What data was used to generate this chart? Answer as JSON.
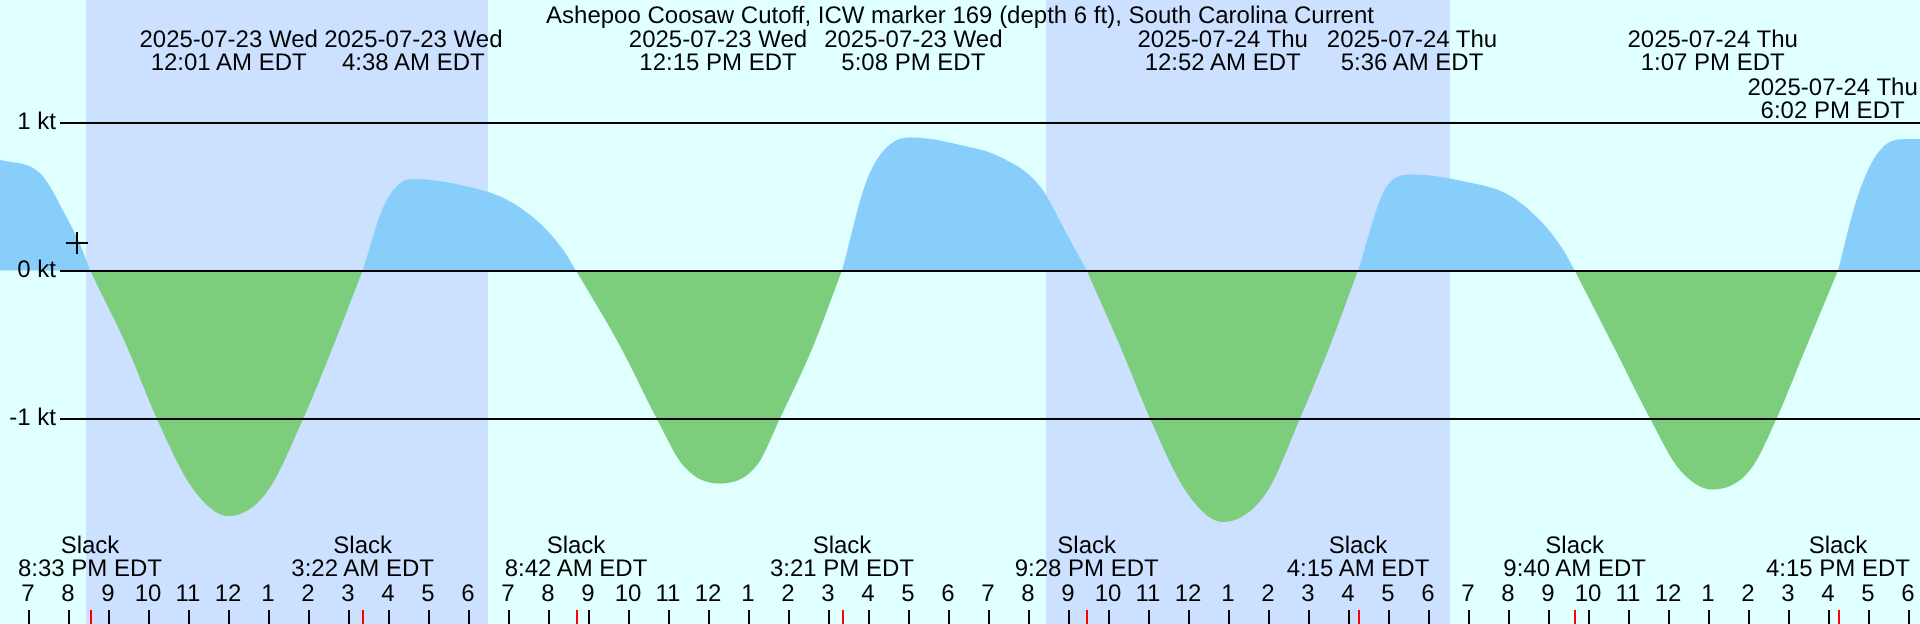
{
  "chart_data": {
    "type": "area",
    "title": "Ashepoo Coosaw Cutoff, ICW marker 169 (depth 6 ft), South Carolina Current",
    "xlim": [
      "2025-07-22T18:18",
      "2025-07-24T18:18"
    ],
    "xticks": [
      {
        "value": "2025-07-22T19:00",
        "label": "7"
      },
      {
        "value": "2025-07-22T20:00",
        "label": "8"
      },
      {
        "value": "2025-07-22T21:00",
        "label": "9"
      },
      {
        "value": "2025-07-22T22:00",
        "label": "10"
      },
      {
        "value": "2025-07-22T23:00",
        "label": "11"
      },
      {
        "value": "2025-07-23T00:00",
        "label": "12"
      },
      {
        "value": "2025-07-23T01:00",
        "label": "1"
      },
      {
        "value": "2025-07-23T02:00",
        "label": "2"
      },
      {
        "value": "2025-07-23T03:00",
        "label": "3"
      },
      {
        "value": "2025-07-23T04:00",
        "label": "4"
      },
      {
        "value": "2025-07-23T05:00",
        "label": "5"
      },
      {
        "value": "2025-07-23T06:00",
        "label": "6"
      },
      {
        "value": "2025-07-23T07:00",
        "label": "7"
      },
      {
        "value": "2025-07-23T08:00",
        "label": "8"
      },
      {
        "value": "2025-07-23T09:00",
        "label": "9"
      },
      {
        "value": "2025-07-23T10:00",
        "label": "10"
      },
      {
        "value": "2025-07-23T11:00",
        "label": "11"
      },
      {
        "value": "2025-07-23T12:00",
        "label": "12"
      },
      {
        "value": "2025-07-23T13:00",
        "label": "1"
      },
      {
        "value": "2025-07-23T14:00",
        "label": "2"
      },
      {
        "value": "2025-07-23T15:00",
        "label": "3"
      },
      {
        "value": "2025-07-23T16:00",
        "label": "4"
      },
      {
        "value": "2025-07-23T17:00",
        "label": "5"
      },
      {
        "value": "2025-07-23T18:00",
        "label": "6"
      },
      {
        "value": "2025-07-23T19:00",
        "label": "7"
      },
      {
        "value": "2025-07-23T20:00",
        "label": "8"
      },
      {
        "value": "2025-07-23T21:00",
        "label": "9"
      },
      {
        "value": "2025-07-23T22:00",
        "label": "10"
      },
      {
        "value": "2025-07-23T23:00",
        "label": "11"
      },
      {
        "value": "2025-07-24T00:00",
        "label": "12"
      },
      {
        "value": "2025-07-24T01:00",
        "label": "1"
      },
      {
        "value": "2025-07-24T02:00",
        "label": "2"
      },
      {
        "value": "2025-07-24T03:00",
        "label": "3"
      },
      {
        "value": "2025-07-24T04:00",
        "label": "4"
      },
      {
        "value": "2025-07-24T05:00",
        "label": "5"
      },
      {
        "value": "2025-07-24T06:00",
        "label": "6"
      },
      {
        "value": "2025-07-24T07:00",
        "label": "7"
      },
      {
        "value": "2025-07-24T08:00",
        "label": "8"
      },
      {
        "value": "2025-07-24T09:00",
        "label": "9"
      },
      {
        "value": "2025-07-24T10:00",
        "label": "10"
      },
      {
        "value": "2025-07-24T11:00",
        "label": "11"
      },
      {
        "value": "2025-07-24T12:00",
        "label": "12"
      },
      {
        "value": "2025-07-24T13:00",
        "label": "1"
      },
      {
        "value": "2025-07-24T14:00",
        "label": "2"
      },
      {
        "value": "2025-07-24T15:00",
        "label": "3"
      },
      {
        "value": "2025-07-24T16:00",
        "label": "4"
      },
      {
        "value": "2025-07-24T17:00",
        "label": "5"
      },
      {
        "value": "2025-07-24T18:00",
        "label": "6"
      }
    ],
    "ylim": [
      -2.39,
      1.83
    ],
    "yticks": [
      {
        "value": 1,
        "label": "1 kt"
      },
      {
        "value": 0,
        "label": "0 kt"
      },
      {
        "value": -1,
        "label": "-1 kt"
      }
    ],
    "grid": "y",
    "legend": false,
    "marker": "none",
    "series": [
      {
        "color": "#87cefa",
        "x": [
          "2025-07-22T18:18",
          "2025-07-22T19:18",
          "2025-07-22T19:57",
          "2025-07-22T20:18",
          "2025-07-22T20:33",
          "2025-07-23T00:00",
          "2025-07-23T03:22",
          "2025-07-23T03:53",
          "2025-07-23T04:18",
          "2025-07-23T04:38",
          "2025-07-23T05:58",
          "2025-07-23T06:58",
          "2025-07-23T07:48",
          "2025-07-23T08:23",
          "2025-07-23T08:42",
          "2025-07-23T12:00",
          "2025-07-23T15:21",
          "2025-07-23T15:58",
          "2025-07-23T16:38",
          "2025-07-23T17:08",
          "2025-07-23T18:18",
          "2025-07-23T19:18",
          "2025-07-23T20:18",
          "2025-07-23T20:58",
          "2025-07-23T21:28",
          "2025-07-24T01:00",
          "2025-07-24T04:15",
          "2025-07-24T04:58",
          "2025-07-24T05:36",
          "2025-07-24T06:58",
          "2025-07-24T07:58",
          "2025-07-24T08:48",
          "2025-07-24T09:23",
          "2025-07-24T09:40",
          "2025-07-24T13:00",
          "2025-07-24T16:15",
          "2025-07-24T16:43",
          "2025-07-24T17:08",
          "2025-07-24T17:38",
          "2025-07-24T18:02",
          "2025-07-24T18:18"
        ],
        "values": [
          0.75,
          0.66,
          0.37,
          0.18,
          0,
          null,
          0,
          0.43,
          0.59,
          0.62,
          0.57,
          0.48,
          0.32,
          0.14,
          0,
          null,
          0,
          0.61,
          0.87,
          0.9,
          0.85,
          0.77,
          0.57,
          0.25,
          0,
          null,
          0,
          0.57,
          0.65,
          0.6,
          0.52,
          0.34,
          0.14,
          0,
          null,
          0,
          0.48,
          0.75,
          0.88,
          0.89,
          0.89
        ]
      },
      {
        "color": "#7ccd7c",
        "x": [
          "2025-07-22T20:33",
          "2025-07-22T21:28",
          "2025-07-22T22:13",
          "2025-07-22T23:08",
          "2025-07-23T00:01",
          "2025-07-23T00:58",
          "2025-07-23T01:53",
          "2025-07-23T02:38",
          "2025-07-23T03:22",
          "2025-07-23T06:00",
          "2025-07-23T08:42",
          "2025-07-23T09:48",
          "2025-07-23T10:43",
          "2025-07-23T11:23",
          "2025-07-23T12:15",
          "2025-07-23T13:13",
          "2025-07-23T13:48",
          "2025-07-23T14:38",
          "2025-07-23T15:21",
          "2025-07-23T18:00",
          "2025-07-23T21:28",
          "2025-07-23T22:18",
          "2025-07-23T23:03",
          "2025-07-23T23:58",
          "2025-07-24T00:52",
          "2025-07-24T01:58",
          "2025-07-24T02:48",
          "2025-07-24T03:33",
          "2025-07-24T04:15",
          "2025-07-24T07:00",
          "2025-07-24T09:40",
          "2025-07-24T10:38",
          "2025-07-24T11:33",
          "2025-07-24T12:18",
          "2025-07-24T13:07",
          "2025-07-24T14:03",
          "2025-07-24T14:43",
          "2025-07-24T15:28",
          "2025-07-24T16:15"
        ],
        "values": [
          0,
          -0.51,
          -1.0,
          -1.48,
          -1.66,
          -1.5,
          -1.0,
          -0.51,
          0,
          null,
          0,
          -0.51,
          -1.0,
          -1.32,
          -1.44,
          -1.32,
          -1.0,
          -0.51,
          0,
          null,
          0,
          -0.51,
          -1.0,
          -1.5,
          -1.7,
          -1.5,
          -1.0,
          -0.51,
          0,
          null,
          0,
          -0.51,
          -1.0,
          -1.35,
          -1.48,
          -1.35,
          -1.0,
          -0.51,
          0
        ]
      }
    ],
    "bands": [
      {
        "axis": "x",
        "from": "2025-07-22T20:27",
        "to": "2025-07-23T06:30",
        "color": "#cce0ff"
      },
      {
        "axis": "x",
        "from": "2025-07-23T20:27",
        "to": "2025-07-24T06:33",
        "color": "#cce0ff"
      }
    ],
    "annotations": [
      "2025-07-23 Wed\n12:01 AM EDT",
      "2025-07-23 Wed\n4:38 AM EDT",
      "2025-07-23 Wed\n12:15 PM EDT",
      "2025-07-23 Wed\n5:08 PM EDT",
      "2025-07-24 Thu\n12:52 AM EDT",
      "2025-07-24 Thu\n5:36 AM EDT",
      "2025-07-24 Thu\n1:07 PM EDT",
      "2025-07-24 Thu\n6:02 PM EDT",
      "Slack\n8:33 PM EDT",
      "Slack\n3:22 AM EDT",
      "Slack\n8:42 AM EDT",
      "Slack\n3:21 PM EDT",
      "Slack\n9:28 PM EDT",
      "Slack\n4:15 AM EDT",
      "Slack\n9:40 AM EDT",
      "Slack\n4:15 PM EDT"
    ]
  }
}
